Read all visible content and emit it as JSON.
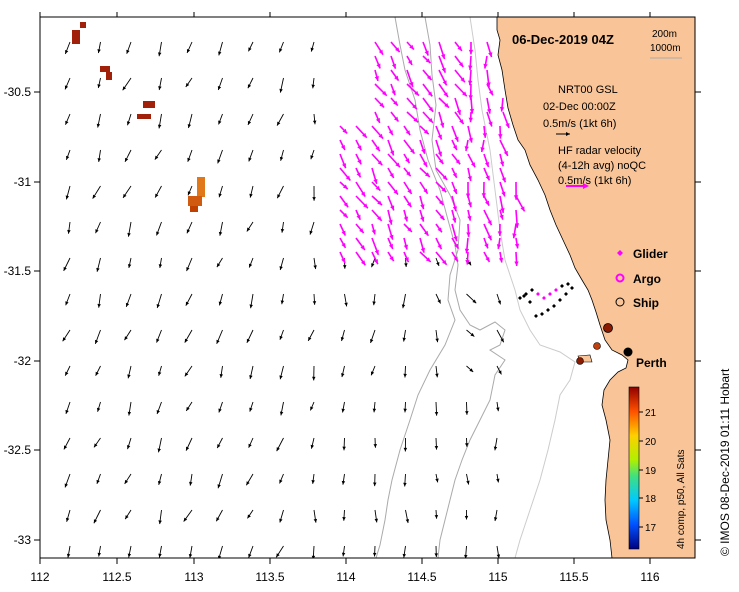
{
  "title": "06-Dec-2019 04Z",
  "depth_legend": {
    "shallow": "200m",
    "deep": "1000m"
  },
  "model_legend": {
    "line1": "NRT00 GSL",
    "line2": "02-Dec 00:00Z",
    "line3": "0.5m/s (1kt 6h)"
  },
  "radar_legend": {
    "line1": "HF radar velocity",
    "line2": "(4-12h avg) noQC",
    "line3": "0.5m/s (1kt 6h)"
  },
  "symbols": {
    "glider": "Glider",
    "argo": "Argo",
    "ship": "Ship"
  },
  "city": "Perth",
  "colorbar": {
    "label": "4h comp, p50, All Sats",
    "ticks": [
      "21",
      "20",
      "19",
      "18",
      "17"
    ]
  },
  "credit": "© IMOS 08-Dec-2019 01:11 Hobart",
  "axes": {
    "x_ticks": [
      "112",
      "112.5",
      "113",
      "113.5",
      "114",
      "114.5",
      "115",
      "115.5",
      "116"
    ],
    "y_ticks": [
      "-30.5",
      "-31",
      "-31.5",
      "-32",
      "-32.5",
      "-33"
    ]
  },
  "colors": {
    "land": "#f9c598",
    "radar": "#ff00ff",
    "model_arrow": "#000000",
    "bathymetry": "#aaaaaa"
  }
}
